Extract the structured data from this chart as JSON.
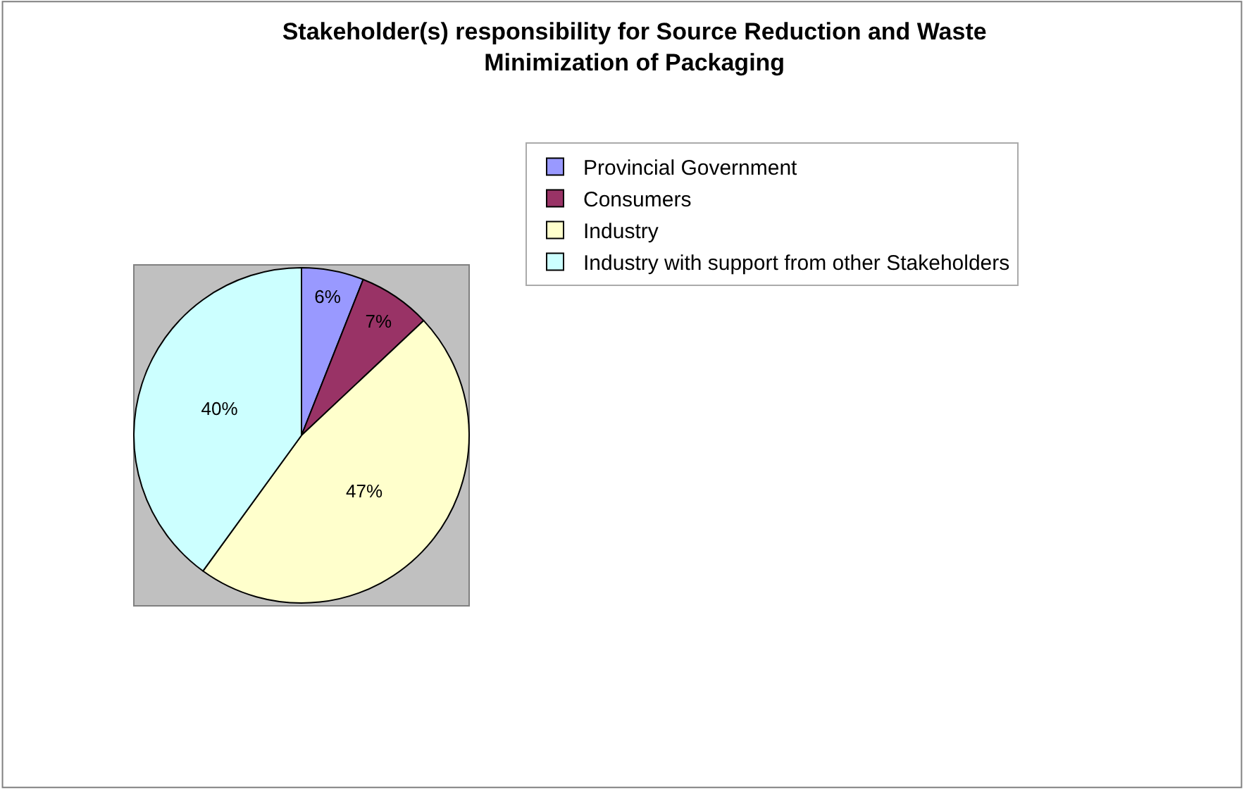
{
  "chart_data": {
    "type": "pie",
    "title": "Stakeholder(s) responsibility for Source Reduction and Waste\nMinimization of Packaging",
    "categories": [
      "Provincial Government",
      "Consumers",
      "Industry",
      "Industry with support from other Stakeholders"
    ],
    "values": [
      6,
      7,
      47,
      40
    ],
    "value_labels": [
      "6%",
      "7%",
      "47%",
      "40%"
    ],
    "colors": [
      "#9999ff",
      "#993366",
      "#ffffcc",
      "#ccffff"
    ],
    "legend": "right"
  }
}
